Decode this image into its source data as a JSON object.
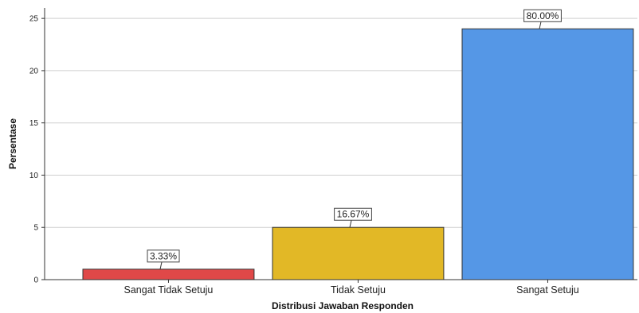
{
  "chart_data": {
    "type": "bar",
    "title": "",
    "xlabel": "Distribusi Jawaban Responden",
    "ylabel": "Persentase",
    "categories": [
      "Sangat Tidak Setuju",
      "Tidak Setuju",
      "Sangat Setuju"
    ],
    "values": [
      1,
      5,
      24
    ],
    "data_labels": [
      "3.33%",
      "16.67%",
      "80.00%"
    ],
    "bar_colors": [
      "#e04848",
      "#e2b826",
      "#5597e6"
    ],
    "ylim": [
      0,
      26
    ],
    "yticks": [
      "0",
      "5",
      "10",
      "15",
      "20",
      "25"
    ],
    "grid": true,
    "legend": "none"
  }
}
